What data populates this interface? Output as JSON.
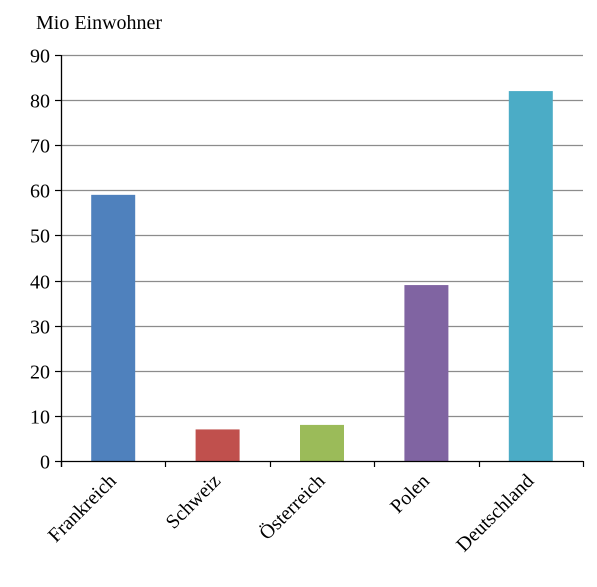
{
  "chart_data": {
    "type": "bar",
    "title": "",
    "xlabel": "",
    "ylabel": "Mio Einwohner",
    "ylim": [
      0,
      90
    ],
    "yticks": [
      0,
      10,
      20,
      30,
      40,
      50,
      60,
      70,
      80,
      90
    ],
    "grid": true,
    "legend": "none",
    "categories": [
      "Frankreich",
      "Schweiz",
      "Österreich",
      "Polen",
      "Deutschland"
    ],
    "values": [
      59,
      7,
      8,
      39,
      82
    ],
    "colors": [
      "#4f81bd",
      "#c0504d",
      "#9bbb59",
      "#8064a2",
      "#4bacc6"
    ]
  }
}
